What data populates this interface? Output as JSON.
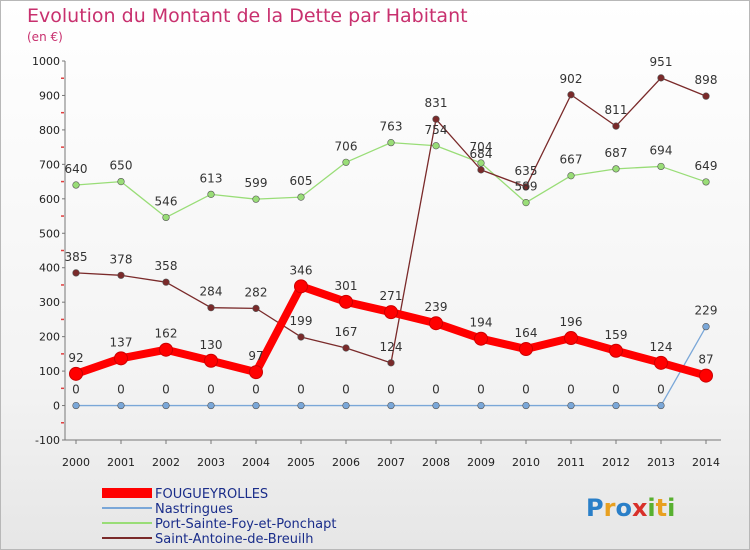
{
  "title": "Evolution du Montant de la Dette par Habitant",
  "subtitle": "(en €)",
  "brand": "Proxiti",
  "chart_data": {
    "type": "line",
    "x": [
      "2000",
      "2001",
      "2002",
      "2003",
      "2004",
      "2005",
      "2006",
      "2007",
      "2008",
      "2009",
      "2010",
      "2011",
      "2012",
      "2013",
      "2014"
    ],
    "ylim": [
      -100,
      1000
    ],
    "yticks": [
      -100,
      0,
      100,
      200,
      300,
      400,
      500,
      600,
      700,
      800,
      900,
      1000
    ],
    "grid": false,
    "legend": "bottom-left",
    "series": [
      {
        "name": "FOUGUEYROLLES",
        "color": "#ff0000",
        "values": [
          92,
          137,
          162,
          130,
          97,
          346,
          301,
          271,
          239,
          194,
          164,
          196,
          159,
          124,
          87
        ]
      },
      {
        "name": "Nastringues",
        "color": "#7aa7d8",
        "values": [
          0,
          0,
          0,
          0,
          0,
          0,
          0,
          0,
          0,
          0,
          0,
          0,
          0,
          0,
          229
        ]
      },
      {
        "name": "Port-Sainte-Foy-et-Ponchapt",
        "color": "#99dd77",
        "values": [
          640,
          650,
          546,
          613,
          599,
          605,
          706,
          763,
          754,
          704,
          589,
          667,
          687,
          694,
          649
        ]
      },
      {
        "name": "Saint-Antoine-de-Breuilh",
        "color": "#7a2a2a",
        "values": [
          385,
          378,
          358,
          284,
          282,
          199,
          167,
          124,
          831,
          684,
          635,
          902,
          811,
          951,
          898
        ]
      }
    ]
  }
}
